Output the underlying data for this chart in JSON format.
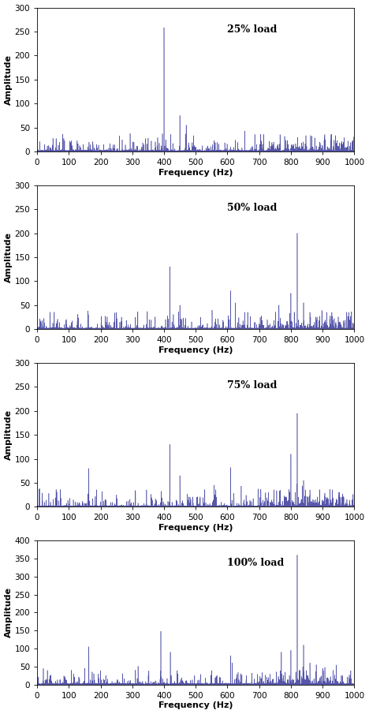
{
  "subplots": [
    {
      "label": "25% load",
      "ylim": [
        0,
        300
      ],
      "yticks": [
        0,
        50,
        100,
        150,
        200,
        250,
        300
      ],
      "main_peaks": [
        {
          "freq": 400,
          "amp": 258
        },
        {
          "freq": 450,
          "amp": 75
        },
        {
          "freq": 470,
          "amp": 55
        },
        {
          "freq": 350,
          "amp": 28
        },
        {
          "freq": 360,
          "amp": 22
        }
      ],
      "base_noise": 8,
      "spike_density": 300,
      "max_spike": 35,
      "noise_seed": 1001
    },
    {
      "label": "50% load",
      "ylim": [
        0,
        300
      ],
      "yticks": [
        0,
        50,
        100,
        150,
        200,
        250,
        300
      ],
      "main_peaks": [
        {
          "freq": 418,
          "amp": 130
        },
        {
          "freq": 450,
          "amp": 50
        },
        {
          "freq": 610,
          "amp": 80
        },
        {
          "freq": 625,
          "amp": 55
        },
        {
          "freq": 820,
          "amp": 200
        },
        {
          "freq": 800,
          "amp": 75
        },
        {
          "freq": 840,
          "amp": 55
        },
        {
          "freq": 860,
          "amp": 35
        },
        {
          "freq": 160,
          "amp": 38
        },
        {
          "freq": 310,
          "amp": 25
        }
      ],
      "base_noise": 8,
      "spike_density": 300,
      "max_spike": 35,
      "noise_seed": 1002
    },
    {
      "label": "75% load",
      "ylim": [
        0,
        300
      ],
      "yticks": [
        0,
        50,
        100,
        150,
        200,
        250,
        300
      ],
      "main_peaks": [
        {
          "freq": 163,
          "amp": 80
        },
        {
          "freq": 418,
          "amp": 130
        },
        {
          "freq": 450,
          "amp": 65
        },
        {
          "freq": 610,
          "amp": 82
        },
        {
          "freq": 800,
          "amp": 110
        },
        {
          "freq": 820,
          "amp": 195
        },
        {
          "freq": 840,
          "amp": 55
        },
        {
          "freq": 860,
          "amp": 35
        },
        {
          "freq": 310,
          "amp": 32
        }
      ],
      "base_noise": 8,
      "spike_density": 300,
      "max_spike": 35,
      "noise_seed": 1003
    },
    {
      "label": "100% load",
      "ylim": [
        0,
        400
      ],
      "yticks": [
        0,
        50,
        100,
        150,
        200,
        250,
        300,
        350,
        400
      ],
      "main_peaks": [
        {
          "freq": 163,
          "amp": 105
        },
        {
          "freq": 390,
          "amp": 148
        },
        {
          "freq": 420,
          "amp": 90
        },
        {
          "freq": 610,
          "amp": 80
        },
        {
          "freq": 615,
          "amp": 60
        },
        {
          "freq": 770,
          "amp": 90
        },
        {
          "freq": 800,
          "amp": 95
        },
        {
          "freq": 820,
          "amp": 360
        },
        {
          "freq": 840,
          "amp": 110
        },
        {
          "freq": 860,
          "amp": 60
        },
        {
          "freq": 150,
          "amp": 45
        },
        {
          "freq": 310,
          "amp": 40
        },
        {
          "freq": 880,
          "amp": 55
        },
        {
          "freq": 900,
          "amp": 45
        }
      ],
      "base_noise": 8,
      "spike_density": 300,
      "max_spike": 38,
      "noise_seed": 1004
    }
  ],
  "line_color": "#5555AA",
  "xlim": [
    0,
    1000
  ],
  "xticks": [
    0,
    100,
    200,
    300,
    400,
    500,
    600,
    700,
    800,
    900,
    1000
  ],
  "xlabel": "Frequency (Hz)",
  "ylabel": "Amplitude",
  "background_color": "#ffffff"
}
